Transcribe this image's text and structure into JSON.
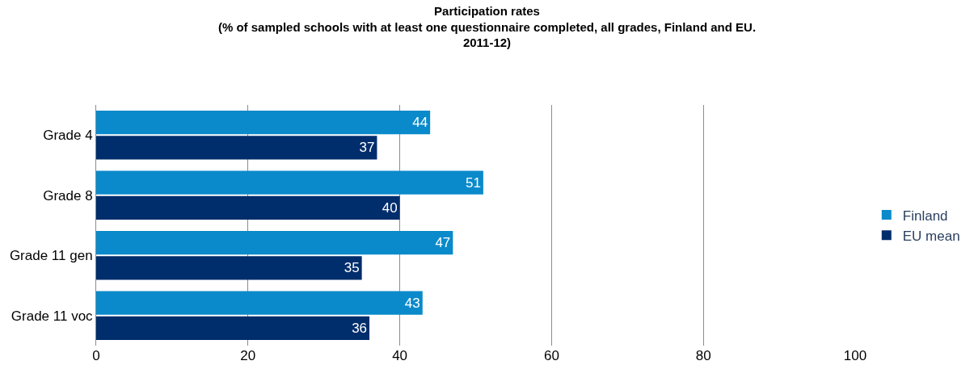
{
  "chart_data": {
    "type": "bar",
    "orientation": "horizontal",
    "title": "Participation rates\n(% of sampled schools with at least one questionnaire completed, all grades, Finland and EU.\n2011-12)",
    "categories": [
      "Grade 4",
      "Grade 8",
      "Grade 11 gen",
      "Grade 11 voc"
    ],
    "series": [
      {
        "name": "Finland",
        "color": "#0a8acb",
        "values": [
          44,
          51,
          47,
          43
        ]
      },
      {
        "name": "EU mean",
        "color": "#002d6b",
        "values": [
          37,
          40,
          35,
          36
        ]
      }
    ],
    "xlim": [
      0,
      100
    ],
    "xticks": [
      0,
      20,
      40,
      60,
      80,
      100
    ],
    "grid": "x",
    "legend": "right",
    "data_labels": true
  }
}
